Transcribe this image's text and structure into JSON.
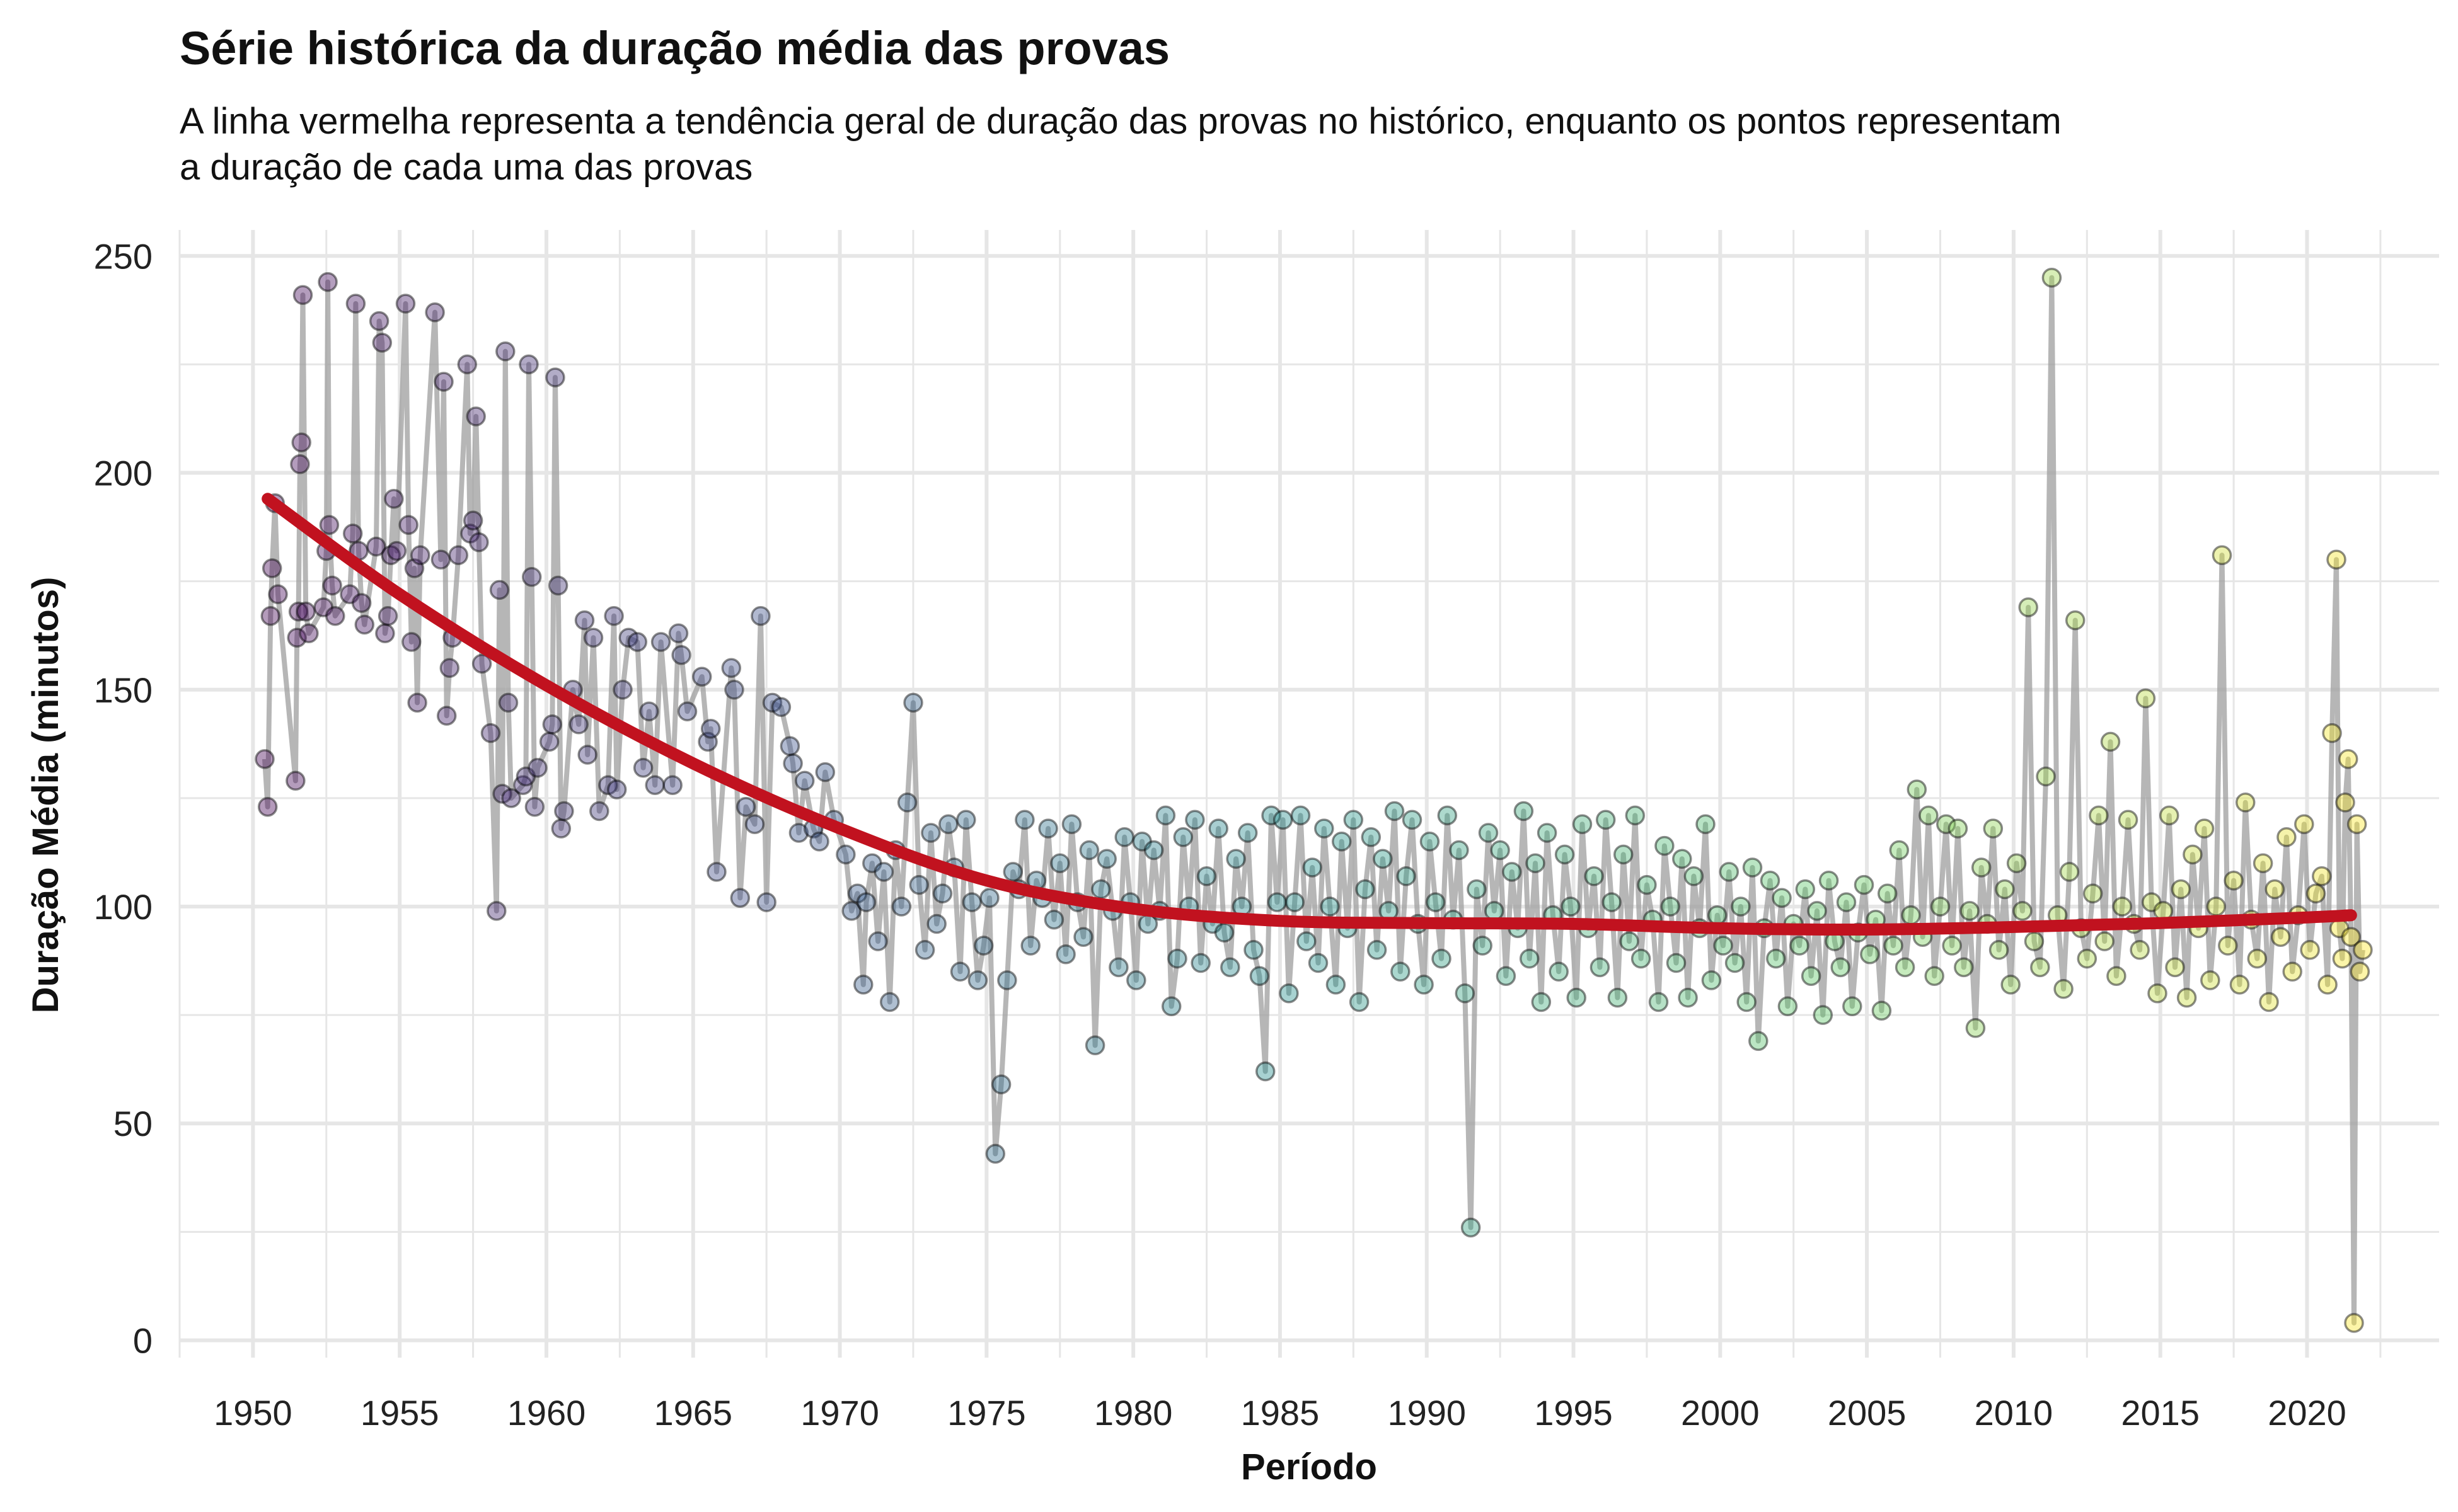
{
  "chart_data": {
    "type": "scatter",
    "title": "Série histórica da duração média das provas",
    "subtitle_lines": [
      "A linha vermelha representa a tendência geral de duração das provas no histórico, enquanto os pontos representam",
      "a duração de cada uma das provas"
    ],
    "xlabel": "Período",
    "ylabel": "Duração Média (minutos)",
    "xlim": [
      1947.5,
      2024.5
    ],
    "ylim": [
      -4,
      256
    ],
    "x_ticks": [
      1950,
      1955,
      1960,
      1965,
      1970,
      1975,
      1980,
      1985,
      1990,
      1995,
      2000,
      2005,
      2010,
      2015,
      2020
    ],
    "x_tick_labels": [
      "1950",
      "1955",
      "1960",
      "1965",
      "1970",
      "1975",
      "1980",
      "1985",
      "1990",
      "1995",
      "2000",
      "2005",
      "2010",
      "2015",
      "2020"
    ],
    "y_ticks": [
      0,
      50,
      100,
      150,
      200,
      250
    ],
    "y_tick_labels": [
      "0",
      "50",
      "100",
      "150",
      "200",
      "250"
    ],
    "grid": true,
    "legend": "none",
    "colors": {
      "trend_line": "#c1121f",
      "connector_line": "#9e9e9e",
      "gridline": "#e6e6e6",
      "point_stroke": "#000000",
      "palette": [
        "#440154",
        "#3b528b",
        "#21908c",
        "#5dc863",
        "#fde725"
      ]
    },
    "trend": {
      "x": [
        1950.5,
        1955,
        1960,
        1965,
        1970,
        1975,
        1980,
        1985,
        1990,
        1995,
        2000,
        2005,
        2010,
        2015,
        2020,
        2021.5
      ],
      "y": [
        194,
        172,
        151,
        133,
        118,
        106,
        99.5,
        96.7,
        96.2,
        96.0,
        95.0,
        94.7,
        95.3,
        96.2,
        97.5,
        98.0
      ]
    },
    "series": [
      {
        "x": [
          1950.4,
          1950.5,
          1950.6,
          1950.65,
          1950.75,
          1950.85,
          1951.45,
          1951.5,
          1951.55,
          1951.6,
          1951.65,
          1951.7,
          1951.8,
          1951.9,
          1952.4,
          1952.5,
          1952.55,
          1952.6,
          1952.7,
          1952.8,
          1953.3,
          1953.4,
          1953.5,
          1953.6,
          1953.7,
          1953.8,
          1954.2,
          1954.3,
          1954.4,
          1954.5,
          1954.6,
          1954.7,
          1954.8,
          1954.9,
          1955.2,
          1955.3,
          1955.4,
          1955.5,
          1955.6,
          1955.7,
          1956.2,
          1956.4,
          1956.5,
          1956.6,
          1956.7,
          1956.8,
          1957.0,
          1957.3,
          1957.4,
          1957.5,
          1957.6,
          1957.7,
          1957.8,
          1958.1,
          1958.3,
          1958.4,
          1958.5,
          1958.6,
          1958.7,
          1958.8,
          1959.2,
          1959.3,
          1959.4,
          1959.5,
          1959.6,
          1959.7,
          1960.1,
          1960.2,
          1960.3,
          1960.4,
          1960.5,
          1960.6,
          1960.9,
          1961.1,
          1961.3,
          1961.4,
          1961.6,
          1961.8,
          1962.1,
          1962.3,
          1962.4,
          1962.6,
          1962.8,
          1963.1,
          1963.3,
          1963.5,
          1963.7,
          1963.9,
          1964.3,
          1964.5,
          1964.6,
          1964.8,
          1965.3,
          1965.5,
          1965.6,
          1965.8,
          1966.3,
          1966.4,
          1966.6,
          1966.8,
          1967.1,
          1967.3,
          1967.5,
          1967.7,
          1968.0,
          1968.3,
          1968.4,
          1968.6,
          1968.8,
          1969.1,
          1969.3,
          1969.5,
          1969.8,
          1970.2,
          1970.4,
          1970.6,
          1970.8
        ],
        "y": [
          134,
          123,
          167,
          178,
          193,
          172,
          129,
          162,
          168,
          202,
          207,
          241,
          168,
          163,
          169,
          182,
          244,
          188,
          174,
          167,
          172,
          186,
          239,
          182,
          170,
          165,
          183,
          235,
          230,
          163,
          167,
          181,
          194,
          182,
          239,
          188,
          161,
          178,
          147,
          181,
          237,
          180,
          221,
          144,
          155,
          162,
          181,
          225,
          186,
          189,
          213,
          184,
          156,
          140,
          99,
          173,
          126,
          228,
          147,
          125,
          128,
          130,
          225,
          176,
          123,
          132,
          138,
          142,
          222,
          174,
          118,
          122,
          150,
          142,
          166,
          135,
          162,
          122,
          128,
          167,
          127,
          150,
          162,
          161,
          132,
          145,
          128,
          161,
          128,
          163,
          158,
          145,
          153,
          138,
          141,
          108,
          155,
          150,
          102,
          123,
          119,
          167,
          101,
          147,
          146,
          137,
          133,
          117,
          129,
          118,
          115,
          131,
          120,
          112,
          99,
          103,
          82
        ]
      },
      {
        "x": [
          1970.9,
          1971.1,
          1971.3,
          1971.5,
          1971.7,
          1971.9,
          1972.1,
          1972.3,
          1972.5,
          1972.7,
          1972.9,
          1973.1,
          1973.3,
          1973.5,
          1973.7,
          1973.9,
          1974.1,
          1974.3,
          1974.5,
          1974.7,
          1974.9,
          1975.1,
          1975.3,
          1975.5,
          1975.7,
          1975.9,
          1976.1,
          1976.3,
          1976.5,
          1976.7,
          1976.9,
          1977.1,
          1977.3,
          1977.5,
          1977.7,
          1977.9,
          1978.1,
          1978.3,
          1978.5,
          1978.7,
          1978.9,
          1979.1,
          1979.3,
          1979.5,
          1979.7,
          1979.9,
          1980.1,
          1980.3,
          1980.5,
          1980.7,
          1980.9,
          1981.1,
          1981.3,
          1981.5,
          1981.7,
          1981.9,
          1982.1,
          1982.3,
          1982.5,
          1982.7,
          1982.9,
          1983.1,
          1983.3,
          1983.5,
          1983.7,
          1983.9,
          1984.1,
          1984.3,
          1984.5,
          1984.7,
          1984.9
        ],
        "y": [
          101,
          110,
          92,
          108,
          78,
          113,
          100,
          124,
          147,
          105,
          90,
          117,
          96,
          103,
          119,
          109,
          85,
          120,
          101,
          83,
          91,
          102,
          43,
          59,
          83,
          108,
          104,
          120,
          91,
          106,
          102,
          118,
          97,
          110,
          89,
          119,
          101,
          93,
          113,
          68,
          104,
          111,
          99,
          86,
          116,
          101,
          83,
          115,
          96,
          113,
          99,
          121,
          77,
          88,
          116,
          100,
          120,
          87,
          107,
          96,
          118,
          94,
          86,
          111,
          100,
          117,
          90,
          84,
          62,
          121,
          101
        ]
      },
      {
        "x": [
          1985.1,
          1985.3,
          1985.5,
          1985.7,
          1985.9,
          1986.1,
          1986.3,
          1986.5,
          1986.7,
          1986.9,
          1987.1,
          1987.3,
          1987.5,
          1987.7,
          1987.9,
          1988.1,
          1988.3,
          1988.5,
          1988.7,
          1988.9,
          1989.1,
          1989.3,
          1989.5,
          1989.7,
          1989.9,
          1990.1,
          1990.3,
          1990.5,
          1990.7,
          1990.9,
          1991.1,
          1991.3,
          1991.5,
          1991.7,
          1991.9,
          1992.1,
          1992.3,
          1992.5,
          1992.7,
          1992.9,
          1993.1,
          1993.3,
          1993.5,
          1993.7,
          1993.9,
          1994.1,
          1994.3,
          1994.5,
          1994.7,
          1994.9,
          1995.1,
          1995.3,
          1995.5,
          1995.7,
          1995.9,
          1996.1,
          1996.3,
          1996.5,
          1996.7,
          1996.9,
          1997.1,
          1997.3,
          1997.5,
          1997.7,
          1997.9,
          1998.1,
          1998.3,
          1998.5,
          1998.7,
          1998.9,
          1999.1,
          1999.3,
          1999.5,
          1999.7,
          1999.9
        ],
        "y": [
          120,
          80,
          101,
          121,
          92,
          109,
          87,
          118,
          100,
          82,
          115,
          95,
          120,
          78,
          104,
          116,
          90,
          111,
          99,
          122,
          85,
          107,
          120,
          96,
          82,
          115,
          101,
          88,
          121,
          97,
          113,
          80,
          26,
          104,
          91,
          117,
          99,
          113,
          84,
          108,
          95,
          122,
          88,
          110,
          78,
          117,
          98,
          85,
          112,
          100,
          79,
          119,
          95,
          107,
          86,
          120,
          101,
          79,
          112,
          92,
          121,
          88,
          105,
          97,
          78,
          114,
          100,
          87,
          111,
          79,
          107,
          95,
          119,
          83,
          98
        ]
      },
      {
        "x": [
          2000.1,
          2000.3,
          2000.5,
          2000.7,
          2000.9,
          2001.1,
          2001.3,
          2001.5,
          2001.7,
          2001.9,
          2002.1,
          2002.3,
          2002.5,
          2002.7,
          2002.9,
          2003.1,
          2003.3,
          2003.5,
          2003.7,
          2003.9,
          2004.1,
          2004.3,
          2004.5,
          2004.7,
          2004.9,
          2005.1,
          2005.3,
          2005.5,
          2005.7,
          2005.9,
          2006.1,
          2006.3,
          2006.5,
          2006.7,
          2006.9,
          2007.1,
          2007.3,
          2007.5,
          2007.7,
          2007.9,
          2008.1,
          2008.3,
          2008.5,
          2008.7,
          2008.9,
          2009.1,
          2009.3,
          2009.5,
          2009.7,
          2009.9,
          2010.1,
          2010.3,
          2010.5,
          2010.7,
          2010.9,
          2011.1,
          2011.3,
          2011.5,
          2011.7,
          2011.9,
          2012.1,
          2012.3,
          2012.5,
          2012.7,
          2012.9,
          2013.1,
          2013.3,
          2013.5,
          2013.7,
          2013.9,
          2014.1,
          2014.3,
          2014.5,
          2014.7,
          2014.9
        ],
        "y": [
          91,
          108,
          87,
          100,
          78,
          109,
          69,
          95,
          106,
          88,
          102,
          77,
          96,
          91,
          104,
          84,
          99,
          75,
          106,
          92,
          86,
          101,
          77,
          94,
          105,
          89,
          97,
          76,
          103,
          91,
          113,
          86,
          98,
          127,
          93,
          121,
          84,
          100,
          119,
          91,
          118,
          86,
          99,
          72,
          109,
          96,
          118,
          90,
          104,
          82,
          110,
          99,
          169,
          92,
          86,
          130,
          245,
          98,
          81,
          108,
          166,
          95,
          88,
          103,
          121,
          92,
          138,
          84,
          100,
          120,
          96,
          90,
          148,
          101,
          80
        ]
      },
      {
        "x": [
          2015.1,
          2015.3,
          2015.5,
          2015.7,
          2015.9,
          2016.1,
          2016.3,
          2016.5,
          2016.7,
          2016.9,
          2017.1,
          2017.3,
          2017.5,
          2017.7,
          2017.9,
          2018.1,
          2018.3,
          2018.5,
          2018.7,
          2018.9,
          2019.1,
          2019.3,
          2019.5,
          2019.7,
          2019.9,
          2020.1,
          2020.3,
          2020.5,
          2020.7,
          2020.85,
          2021.0,
          2021.1,
          2021.2,
          2021.3,
          2021.4,
          2021.5,
          2021.6,
          2021.7,
          2021.8,
          2021.9
        ],
        "y": [
          99,
          121,
          86,
          104,
          79,
          112,
          95,
          118,
          83,
          100,
          181,
          91,
          106,
          82,
          124,
          97,
          88,
          110,
          78,
          104,
          93,
          116,
          85,
          98,
          119,
          90,
          103,
          107,
          82,
          140,
          180,
          95,
          88,
          124,
          134,
          93,
          4,
          119,
          85,
          90
        ]
      }
    ]
  }
}
